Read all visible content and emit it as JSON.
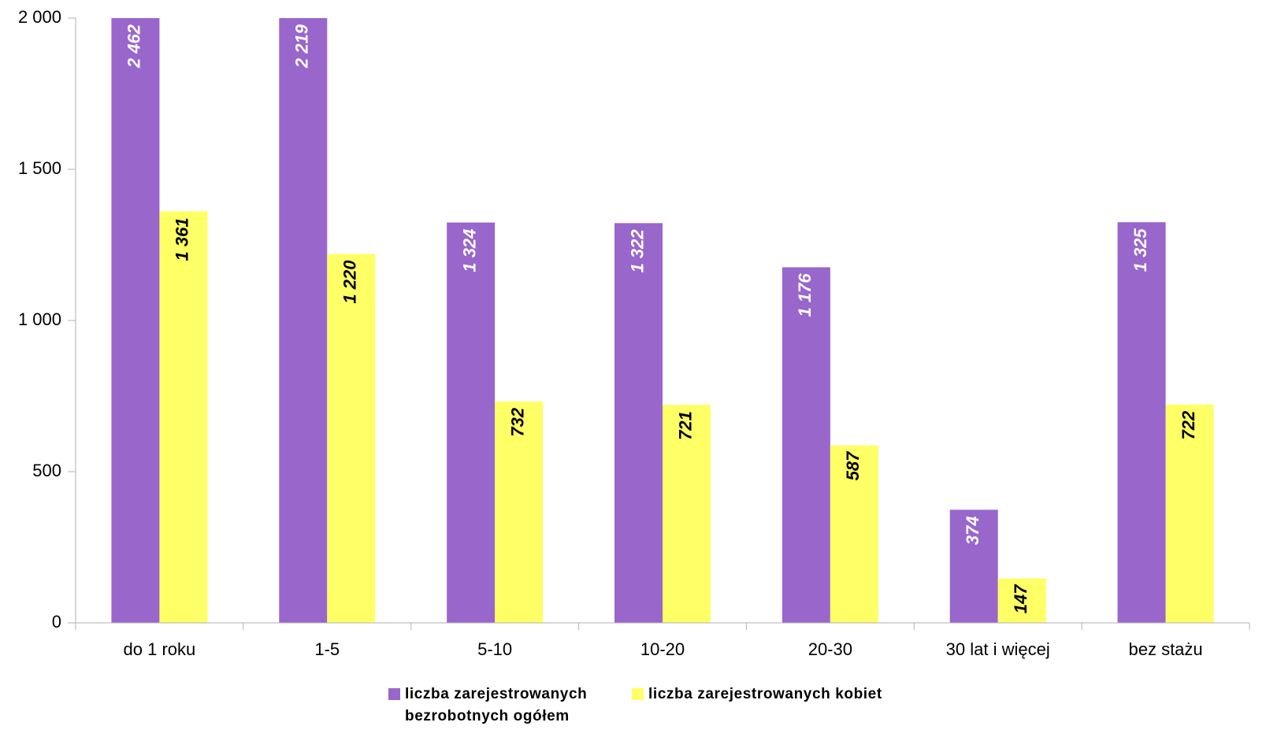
{
  "chart_data": {
    "type": "bar",
    "categories": [
      "do 1 roku",
      "1-5",
      "5-10",
      "10-20",
      "20-30",
      "30 lat i więcej",
      "bez stażu"
    ],
    "series": [
      {
        "name": "liczba zarejestrowanych bezrobotnych ogółem",
        "color": "#9966cc",
        "values": [
          2462,
          2219,
          1324,
          1322,
          1176,
          374,
          1325
        ],
        "value_labels": [
          "2 462",
          "2 219",
          "1 324",
          "1 322",
          "1 176",
          "374",
          "1 325"
        ]
      },
      {
        "name": "liczba zarejestrowanych kobiet",
        "color": "#ffff66",
        "values": [
          1361,
          1220,
          732,
          721,
          587,
          147,
          722
        ],
        "value_labels": [
          "1 361",
          "1 220",
          "732",
          "721",
          "587",
          "147",
          "722"
        ]
      }
    ],
    "ylim": [
      0,
      2000
    ],
    "yticks": [
      0,
      500,
      {
        "value": 1000,
        "label": "1 000"
      },
      {
        "value": 1500,
        "label": "1 500"
      },
      {
        "value": 2000,
        "label": "2 000"
      }
    ],
    "legend": "bottom"
  }
}
